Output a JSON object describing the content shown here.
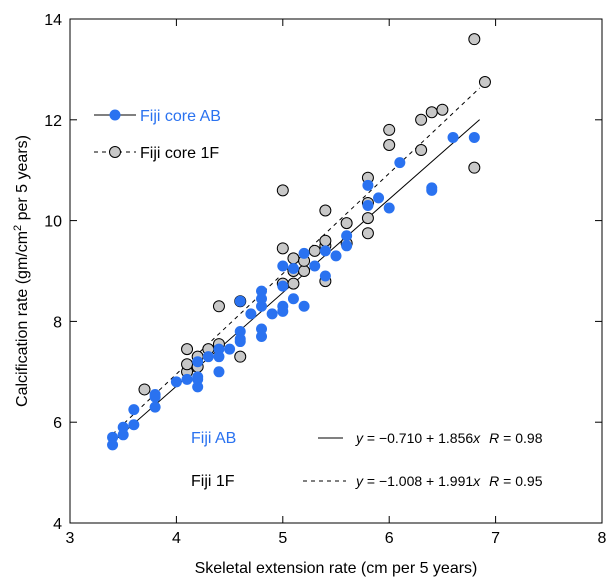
{
  "chart_data": {
    "type": "scatter",
    "xlabel": "Skeletal extension rate (cm per 5 years)",
    "ylabel": {
      "prefix": "Calcification rate (gm/cm",
      "sup": "2",
      "suffix": " per 5 years)"
    },
    "xlim": [
      3,
      8
    ],
    "ylim": [
      4,
      14
    ],
    "xticks": [
      "3",
      "4",
      "5",
      "6",
      "7",
      "8"
    ],
    "yticks": [
      "4",
      "6",
      "8",
      "10",
      "12",
      "14"
    ],
    "grid": false,
    "legend_position": "upper-left",
    "colors": {
      "blue": "#2a72f0",
      "grey_fill": "#c8c8c8",
      "line": "#000000"
    },
    "series": [
      {
        "name": "Fiji core AB",
        "marker": "filled-blue-circle",
        "line_style": "solid",
        "fit": {
          "intercept": -0.71,
          "slope": 1.856,
          "x_range": [
            3.4,
            6.85
          ]
        },
        "points": [
          [
            3.4,
            5.55
          ],
          [
            3.4,
            5.7
          ],
          [
            3.5,
            5.75
          ],
          [
            3.5,
            5.9
          ],
          [
            3.6,
            5.95
          ],
          [
            3.6,
            6.25
          ],
          [
            3.8,
            6.3
          ],
          [
            3.8,
            6.5
          ],
          [
            3.8,
            6.55
          ],
          [
            4.0,
            6.8
          ],
          [
            4.1,
            6.85
          ],
          [
            4.2,
            6.7
          ],
          [
            4.2,
            6.85
          ],
          [
            4.2,
            6.9
          ],
          [
            4.2,
            7.2
          ],
          [
            4.3,
            7.3
          ],
          [
            4.4,
            7.0
          ],
          [
            4.4,
            7.3
          ],
          [
            4.4,
            7.45
          ],
          [
            4.5,
            7.45
          ],
          [
            4.6,
            7.6
          ],
          [
            4.6,
            7.65
          ],
          [
            4.6,
            7.8
          ],
          [
            4.6,
            8.4
          ],
          [
            4.7,
            8.15
          ],
          [
            4.8,
            7.7
          ],
          [
            4.8,
            7.85
          ],
          [
            4.8,
            8.3
          ],
          [
            4.8,
            8.45
          ],
          [
            4.8,
            8.6
          ],
          [
            4.9,
            8.15
          ],
          [
            5.0,
            8.2
          ],
          [
            5.0,
            8.3
          ],
          [
            5.0,
            8.7
          ],
          [
            5.0,
            9.1
          ],
          [
            5.1,
            8.45
          ],
          [
            5.1,
            9.05
          ],
          [
            5.2,
            8.3
          ],
          [
            5.2,
            9.35
          ],
          [
            5.3,
            9.1
          ],
          [
            5.4,
            8.9
          ],
          [
            5.4,
            9.4
          ],
          [
            5.5,
            9.3
          ],
          [
            5.6,
            9.5
          ],
          [
            5.6,
            9.7
          ],
          [
            5.8,
            10.3
          ],
          [
            5.8,
            10.7
          ],
          [
            5.9,
            10.45
          ],
          [
            6.0,
            10.25
          ],
          [
            6.1,
            11.15
          ],
          [
            6.4,
            10.6
          ],
          [
            6.4,
            10.65
          ],
          [
            6.6,
            11.65
          ],
          [
            6.8,
            11.65
          ]
        ]
      },
      {
        "name": "Fiji core 1F",
        "marker": "grey-circle",
        "line_style": "dashed",
        "fit": {
          "intercept": -1.008,
          "slope": 1.991,
          "x_range": [
            3.4,
            6.85
          ]
        },
        "points": [
          [
            3.7,
            6.65
          ],
          [
            4.1,
            7.0
          ],
          [
            4.1,
            7.15
          ],
          [
            4.1,
            7.45
          ],
          [
            4.2,
            7.1
          ],
          [
            4.2,
            7.3
          ],
          [
            4.3,
            7.45
          ],
          [
            4.4,
            7.55
          ],
          [
            4.4,
            8.3
          ],
          [
            4.6,
            7.3
          ],
          [
            4.6,
            8.4
          ],
          [
            5.0,
            8.75
          ],
          [
            5.0,
            9.45
          ],
          [
            5.0,
            10.6
          ],
          [
            5.1,
            8.75
          ],
          [
            5.1,
            9.0
          ],
          [
            5.1,
            9.25
          ],
          [
            5.2,
            9.0
          ],
          [
            5.2,
            9.2
          ],
          [
            5.3,
            9.4
          ],
          [
            5.4,
            8.8
          ],
          [
            5.4,
            9.5
          ],
          [
            5.4,
            9.6
          ],
          [
            5.4,
            10.2
          ],
          [
            5.6,
            9.55
          ],
          [
            5.6,
            9.95
          ],
          [
            5.8,
            9.75
          ],
          [
            5.8,
            10.05
          ],
          [
            5.8,
            10.35
          ],
          [
            5.8,
            10.85
          ],
          [
            6.0,
            11.5
          ],
          [
            6.0,
            11.8
          ],
          [
            6.3,
            11.4
          ],
          [
            6.3,
            12.0
          ],
          [
            6.4,
            12.15
          ],
          [
            6.5,
            12.2
          ],
          [
            6.8,
            11.05
          ],
          [
            6.8,
            13.6
          ],
          [
            6.9,
            12.75
          ]
        ]
      }
    ],
    "annotations": {
      "ab_label": "Fiji AB",
      "f1_label": "Fiji 1F",
      "ab_equation": {
        "lhs": "y",
        "mid": " = −0.710 + 1.856",
        "x": "x",
        "rlabel": "R",
        "rval": " = 0.98"
      },
      "f1_equation": {
        "lhs": "y",
        "mid": " = −1.008 + 1.991",
        "x": "x",
        "rlabel": "R",
        "rval": " = 0.95"
      }
    }
  }
}
